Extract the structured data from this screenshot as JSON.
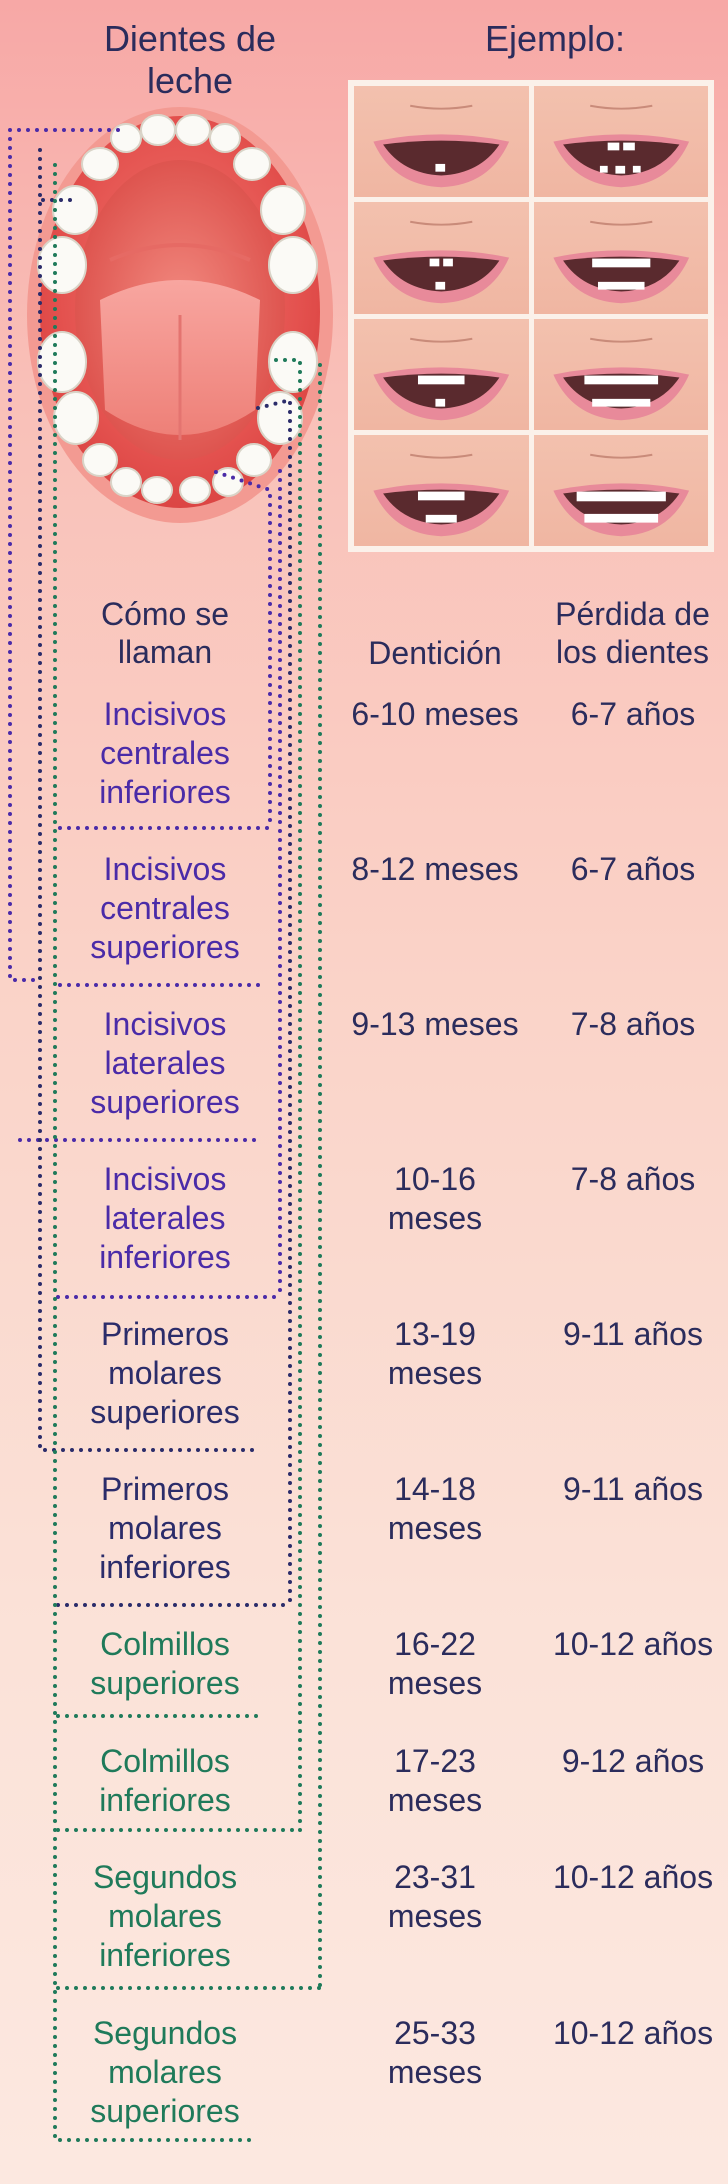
{
  "header": {
    "left_title": "Dientes de leche",
    "right_title": "Ejemplo:"
  },
  "columns": {
    "name": "Cómo se llaman",
    "teething": "Dentición",
    "loss": "Pérdida de los dientes"
  },
  "rows": [
    {
      "name": "Incisivos centrales inferiores",
      "teething": "6-10 meses",
      "loss": "6-7 años"
    },
    {
      "name": "Incisivos centrales superiores",
      "teething": "8-12 meses",
      "loss": "6-7 años"
    },
    {
      "name": "Incisivos laterales superiores",
      "teething": "9-13 meses",
      "loss": "7-8 años"
    },
    {
      "name": "Incisivos laterales inferiores",
      "teething": "10-16 meses",
      "loss": "7-8 años"
    },
    {
      "name": "Primeros molares superiores",
      "teething": "13-19 meses",
      "loss": "9-11 años"
    },
    {
      "name": "Primeros molares inferiores",
      "teething": "14-18 meses",
      "loss": "9-11 años"
    },
    {
      "name": "Colmillos superiores",
      "teething": "16-22 meses",
      "loss": "10-12 años"
    },
    {
      "name": "Colmillos inferiores",
      "teething": "17-23 meses",
      "loss": "9-12 años"
    },
    {
      "name": "Segundos molares inferiores",
      "teething": "23-31 meses",
      "loss": "10-12 años"
    },
    {
      "name": "Segundos molares superiores",
      "teething": "25-33 meses",
      "loss": "10-12 años"
    }
  ],
  "colors": {
    "incisors": "#4a2ba8",
    "molars": "#2b2c6a",
    "canines": "#1f7a5a",
    "text": "#2b2c5c"
  },
  "icons": {
    "mouth_diagram": "open-mouth-teeth-diagram",
    "example_cells": "smiling-mouth-icon"
  }
}
